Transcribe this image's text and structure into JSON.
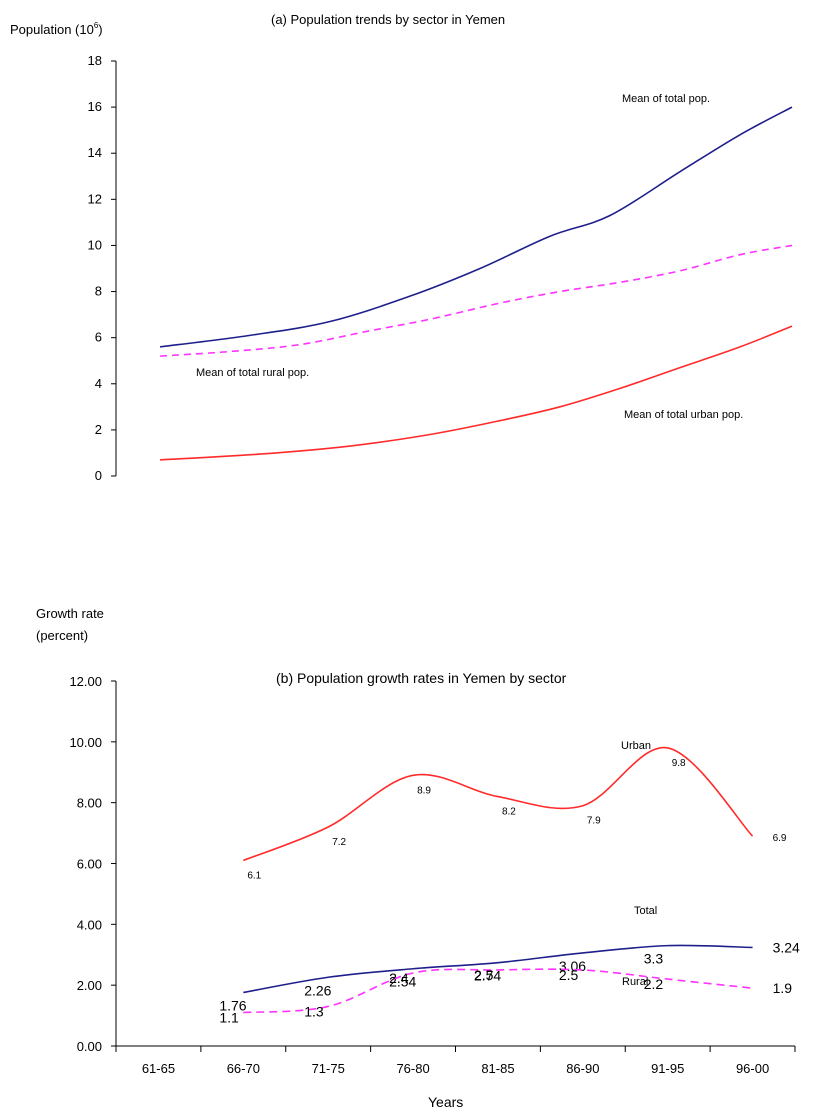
{
  "chart_data": [
    {
      "type": "line",
      "title": "(a) Population trends by sector in Yemen",
      "ylabel": "Population (10",
      "ylabel_sup": "6",
      "ylabel_close": ")",
      "ylim": [
        0,
        18
      ],
      "yticks": [
        "0",
        "2",
        "4",
        "6",
        "8",
        "10",
        "12",
        "14",
        "16",
        "18"
      ],
      "grid": false,
      "series": [
        {
          "name": "Mean of total pop.",
          "color": "#1f1f8c",
          "dash": "solid",
          "x": [
            0,
            1,
            2,
            3,
            4,
            5,
            6,
            7,
            8,
            9,
            10
          ],
          "values": [
            5.6,
            5.9,
            6.3,
            6.8,
            7.7,
            8.9,
            10.5,
            12.8,
            15.9,
            16.0,
            16.0
          ]
        },
        {
          "name": "Mean of total rural pop.",
          "color": "#ff33ff",
          "dash": "dashed",
          "x": [
            0,
            1,
            2,
            3,
            4,
            5,
            6,
            7,
            8,
            9
          ],
          "values": [
            5.2,
            5.5,
            5.8,
            6.5,
            7.4,
            8.3,
            9.0,
            9.6,
            10.0,
            10.0
          ]
        },
        {
          "name": "Mean of total urban pop.",
          "color": "#ff2a2a",
          "dash": "solid",
          "x": [
            0,
            1,
            2,
            3,
            4,
            5,
            6,
            7,
            8,
            9
          ],
          "values": [
            0.7,
            0.9,
            1.2,
            1.8,
            2.5,
            3.3,
            4.4,
            5.5,
            6.5,
            6.5
          ]
        }
      ]
    },
    {
      "type": "line",
      "title": "(b)  Population growth rates in Yemen by sector",
      "ylabel_line1": "Growth rate",
      "ylabel_line2": "(percent)",
      "xlabel": "Years",
      "categories": [
        "61-65",
        "66-70",
        "71-75",
        "76-80",
        "81-85",
        "86-90",
        "91-95",
        "96-00"
      ],
      "yticks": [
        "0.00",
        "2.00",
        "4.00",
        "6.00",
        "8.00",
        "10.00",
        "12.00"
      ],
      "ylim": [
        0,
        12
      ],
      "grid": false,
      "series": [
        {
          "name": "Urban",
          "color": "#ff2a2a",
          "dash": "solid",
          "values": [
            null,
            6.1,
            7.2,
            8.9,
            8.2,
            7.9,
            9.8,
            6.9
          ],
          "labels": [
            "",
            "6.1",
            "7.2",
            "8.9",
            "8.2",
            "7.9",
            "9.8",
            "6.9"
          ]
        },
        {
          "name": "Total",
          "color": "#1f1f8c",
          "dash": "solid",
          "values": [
            null,
            1.76,
            2.26,
            2.54,
            2.74,
            3.06,
            3.3,
            3.24
          ],
          "labels": [
            "",
            "1.76",
            "2.26",
            "2.54",
            "2.74",
            "3.06",
            "3.3",
            "3.24"
          ]
        },
        {
          "name": "Rural",
          "color": "#ff33ff",
          "dash": "dashed",
          "values": [
            null,
            1.1,
            1.3,
            2.4,
            2.5,
            2.5,
            2.2,
            1.9
          ],
          "labels": [
            "",
            "1.1",
            "1.3",
            "2.4",
            "2.5",
            "2.5",
            "2.2",
            "1.9"
          ]
        }
      ]
    }
  ]
}
